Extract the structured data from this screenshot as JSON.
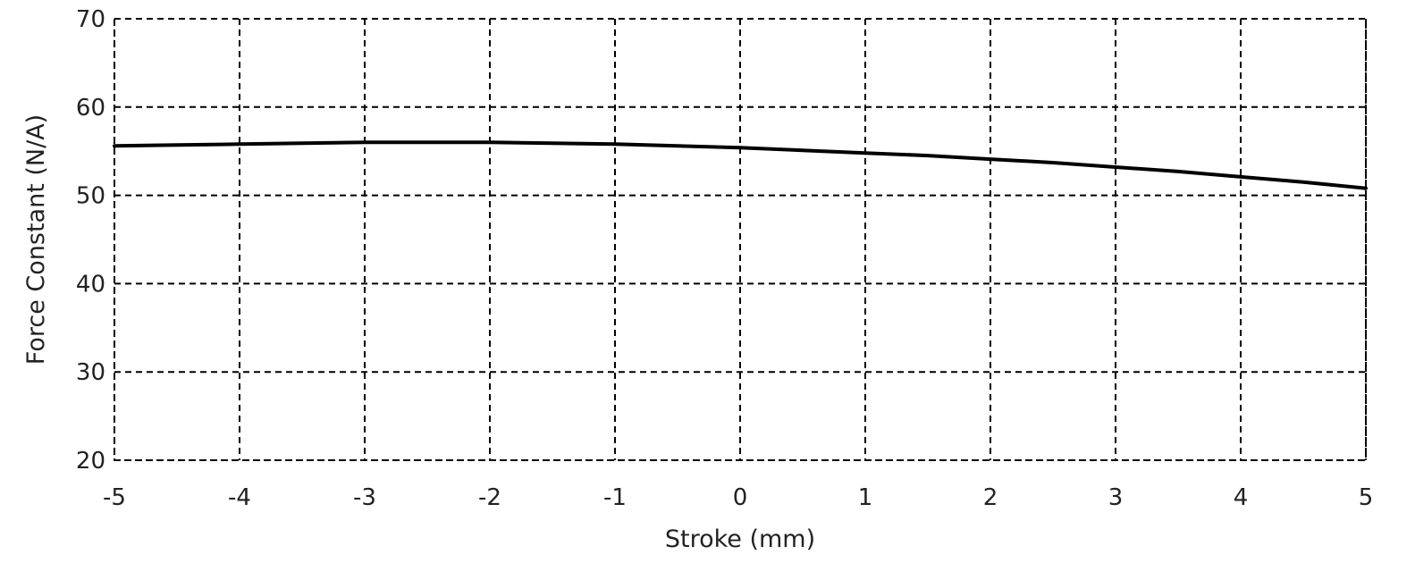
{
  "chart_data": {
    "type": "line",
    "title": "",
    "xlabel": "Stroke (mm)",
    "ylabel": "Force Constant (N/A)",
    "xlim": [
      -5,
      5
    ],
    "ylim": [
      20,
      70
    ],
    "x_ticks": [
      "-5",
      "-4",
      "-3",
      "-2",
      "-1",
      "0",
      "1",
      "2",
      "3",
      "4",
      "5"
    ],
    "y_ticks": [
      "20",
      "30",
      "40",
      "50",
      "60",
      "70"
    ],
    "grid": true,
    "grid_style": "dashed",
    "series": [
      {
        "x": [
          -5,
          -4.5,
          -4,
          -3.5,
          -3,
          -2.5,
          -2,
          -1.5,
          -1,
          -0.5,
          0,
          0.5,
          1,
          1.5,
          2,
          2.5,
          3,
          3.5,
          4,
          4.5,
          5
        ],
        "y": [
          55.6,
          55.7,
          55.8,
          55.9,
          56.0,
          56.0,
          56.0,
          55.9,
          55.8,
          55.6,
          55.4,
          55.1,
          54.8,
          54.5,
          54.1,
          53.7,
          53.2,
          52.7,
          52.1,
          51.5,
          50.8
        ],
        "color": "#000000"
      }
    ]
  }
}
